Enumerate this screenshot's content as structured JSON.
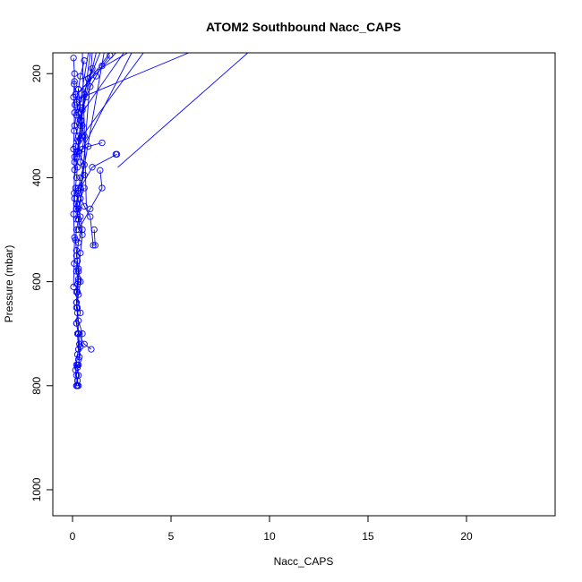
{
  "chart_data": {
    "type": "scatter",
    "title": "ATOM2 Southbound Nacc_CAPS",
    "xlabel": "Nacc_CAPS",
    "ylabel": "Pressure (mbar)",
    "xlim": [
      -1,
      24.5
    ],
    "ylim": [
      1050,
      160
    ],
    "y_reversed": true,
    "x_ticks": [
      0,
      5,
      10,
      15,
      20
    ],
    "y_ticks": [
      200,
      400,
      600,
      800,
      1000
    ],
    "grid": false,
    "legend": "none",
    "marker": "open-circle",
    "connected": true,
    "color": "#0000ff",
    "series": [
      {
        "x": [
          0.05,
          0.1,
          0.08,
          0.15,
          0.12,
          0.2,
          0.1,
          0.3,
          0.15,
          0.1,
          0.25,
          0.2,
          0.15,
          0.1,
          0.2,
          0.3,
          0.2,
          0.15,
          0.2,
          0.25,
          0.2,
          0.3,
          0.25,
          0.2,
          0.25,
          0.2,
          0.3,
          0.35,
          0.25,
          0.2,
          0.3,
          0.25,
          0.2,
          0.15,
          0.3,
          0.25
        ],
        "y": [
          170,
          200,
          220,
          240,
          260,
          280,
          300,
          320,
          340,
          360,
          380,
          400,
          420,
          440,
          460,
          480,
          500,
          520,
          540,
          560,
          580,
          600,
          620,
          640,
          660,
          680,
          700,
          720,
          740,
          760,
          780,
          790,
          800,
          770,
          730,
          700
        ]
      },
      {
        "x": [
          0.6,
          0.4,
          0.3,
          0.2,
          0.3,
          0.5,
          0.4,
          0.3,
          0.6,
          0.4,
          0.3,
          0.2,
          0.4,
          0.5,
          0.3,
          0.2,
          0.3,
          0.4,
          0.3,
          0.2,
          0.3,
          0.5,
          0.4,
          0.3
        ],
        "y": [
          175,
          205,
          230,
          255,
          275,
          300,
          325,
          350,
          375,
          400,
          425,
          450,
          475,
          500,
          525,
          550,
          575,
          600,
          625,
          650,
          675,
          700,
          725,
          750
        ]
      },
      {
        "x": [
          1.0,
          0.8,
          0.6,
          0.5,
          0.4,
          0.6,
          0.5,
          0.4,
          0.6,
          0.3,
          0.2,
          0.3,
          0.5,
          0.4,
          0.3,
          0.2,
          0.4
        ],
        "y": [
          190,
          210,
          240,
          265,
          290,
          320,
          345,
          370,
          395,
          420,
          450,
          480,
          510,
          545,
          580,
          620,
          660
        ]
      },
      {
        "x": [
          1.9,
          1.5,
          1.2,
          0.9,
          0.7,
          0.5,
          0.4,
          0.3,
          0.2
        ],
        "y": [
          165,
          185,
          205,
          225,
          245,
          270,
          300,
          330,
          360
        ]
      },
      {
        "x": [
          1.5,
          0.8,
          0.2,
          0.1
        ],
        "y": [
          333,
          340,
          350,
          370
        ]
      },
      {
        "x": [
          2.2,
          2.25,
          1.0,
          0.4,
          0.2
        ],
        "y": [
          355,
          355,
          380,
          420,
          460
        ]
      },
      {
        "x": [
          1.4,
          1.5,
          0.9,
          0.3
        ],
        "y": [
          386,
          420,
          460,
          500
        ]
      },
      {
        "x": [
          1.1,
          1.15,
          1.05,
          0.9,
          0.6,
          0.3
        ],
        "y": [
          500,
          530,
          530,
          475,
          455,
          430
        ]
      },
      {
        "x": [
          0.95,
          0.6,
          0.3,
          0.2
        ],
        "y": [
          730,
          720,
          700,
          680
        ]
      },
      {
        "x": [
          0.6,
          0.4,
          0.3,
          0.2
        ],
        "y": [
          420,
          440,
          460,
          480
        ]
      },
      {
        "x": [
          0.25,
          0.3,
          0.25,
          0.2,
          0.25,
          0.3,
          0.35,
          0.3,
          0.25
        ],
        "y": [
          560,
          595,
          605,
          640,
          650,
          700,
          745,
          760,
          765
        ]
      },
      {
        "x": [
          0.5,
          0.45,
          0.4,
          0.35,
          0.3
        ],
        "y": [
          320,
          290,
          265,
          250,
          230
        ]
      },
      {
        "x": [
          0.2,
          0.25,
          0.3,
          0.2,
          0.25
        ],
        "y": [
          800,
          800,
          800,
          780,
          760
        ]
      },
      {
        "x": [
          0.1,
          0.05,
          0.1,
          0.08,
          0.05,
          0.1,
          0.08,
          0.05,
          0.1,
          0.08,
          0.05
        ],
        "y": [
          215,
          245,
          275,
          310,
          345,
          385,
          430,
          470,
          515,
          565,
          610
        ]
      }
    ],
    "upper_edge_lines": [
      {
        "x": [
          0.4,
          1.6
        ],
        "y": [
          420,
          160
        ]
      },
      {
        "x": [
          0.3,
          3.0
        ],
        "y": [
          360,
          160
        ]
      },
      {
        "x": [
          0.3,
          3.6
        ],
        "y": [
          330,
          160
        ]
      },
      {
        "x": [
          0.2,
          5.9
        ],
        "y": [
          250,
          160
        ]
      },
      {
        "x": [
          2.3,
          8.9
        ],
        "y": [
          380,
          160
        ]
      },
      {
        "x": [
          0.2,
          2.2
        ],
        "y": [
          240,
          160
        ]
      },
      {
        "x": [
          0.6,
          1.9
        ],
        "y": [
          225,
          160
        ]
      },
      {
        "x": [
          0.3,
          2.6
        ],
        "y": [
          285,
          160
        ]
      },
      {
        "x": [
          0.5,
          2.8
        ],
        "y": [
          210,
          160
        ]
      },
      {
        "x": [
          0.1,
          1.2
        ],
        "y": [
          330,
          160
        ]
      },
      {
        "x": [
          0.2,
          1.4
        ],
        "y": [
          270,
          160
        ]
      },
      {
        "x": [
          0.1,
          0.9
        ],
        "y": [
          400,
          160
        ]
      },
      {
        "x": [
          0.2,
          0.8
        ],
        "y": [
          300,
          160
        ]
      },
      {
        "x": [
          0.7,
          0.5
        ],
        "y": [
          455,
          160
        ]
      },
      {
        "x": [
          0.3,
          1.0
        ],
        "y": [
          500,
          160
        ]
      }
    ]
  }
}
